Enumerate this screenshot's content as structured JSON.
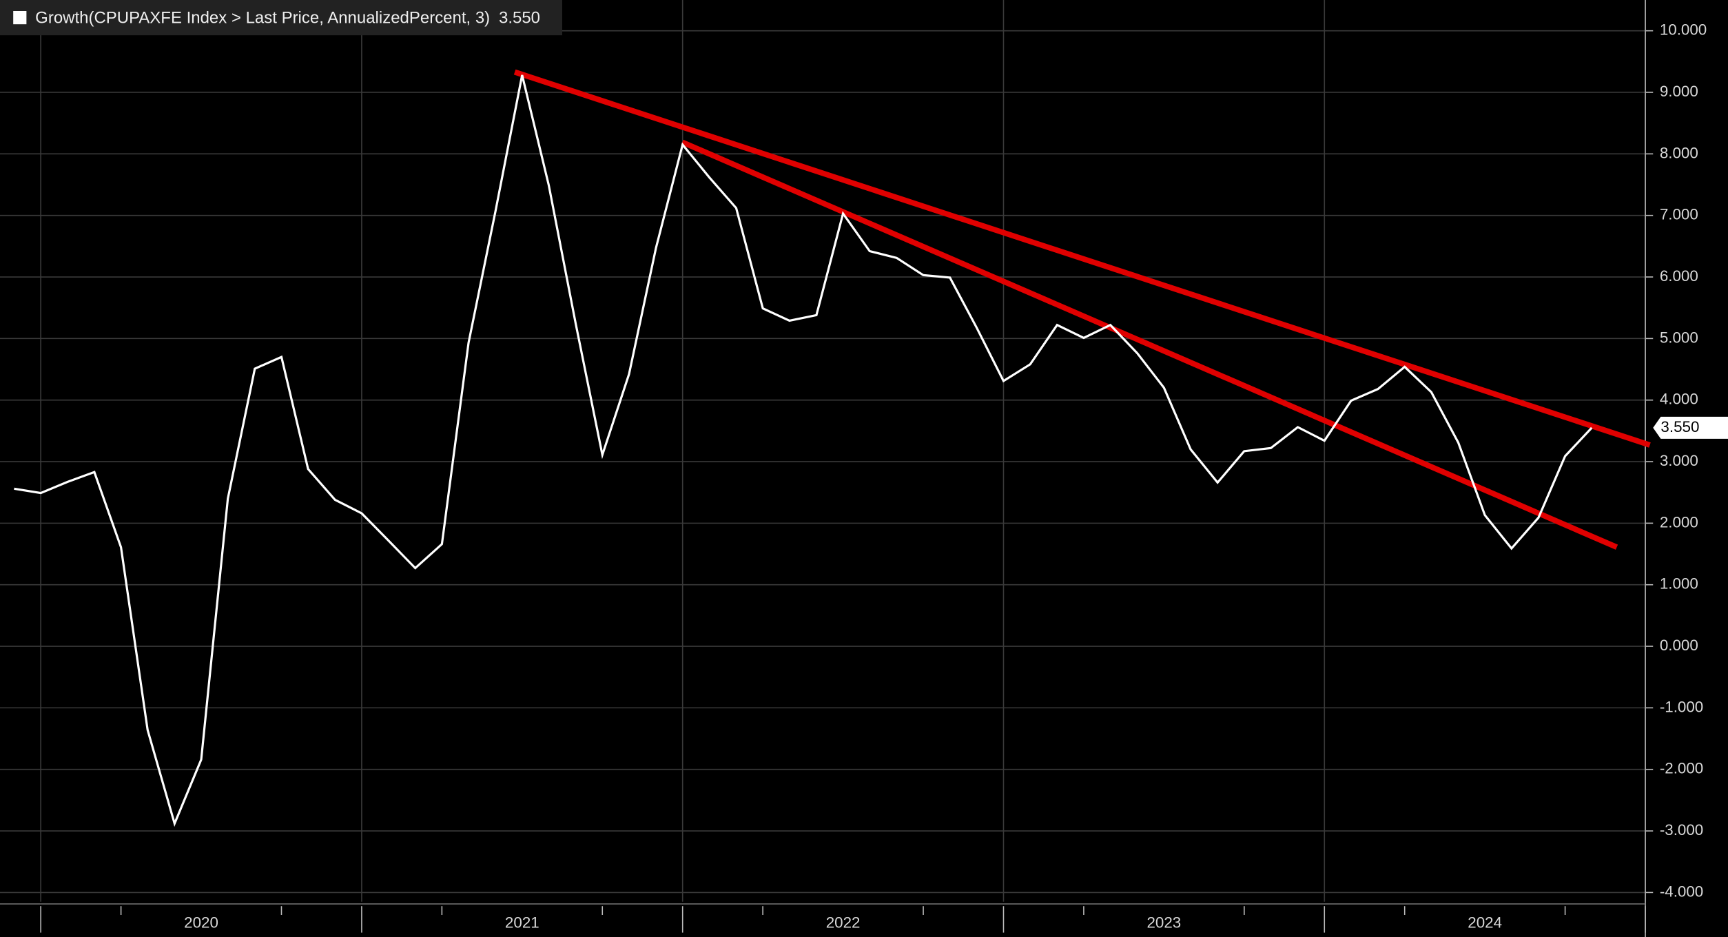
{
  "chart_data": {
    "type": "line",
    "series": [
      {
        "name": "Growth(CPUPAXFE Index > Last Price, AnnualizedPercent, 3)",
        "color": "#ffffff",
        "x": [
          2019.917,
          2020,
          2020.083,
          2020.167,
          2020.25,
          2020.333,
          2020.417,
          2020.5,
          2020.583,
          2020.667,
          2020.75,
          2020.833,
          2020.917,
          2021,
          2021.083,
          2021.167,
          2021.25,
          2021.333,
          2021.417,
          2021.5,
          2021.583,
          2021.667,
          2021.75,
          2021.833,
          2021.917,
          2022,
          2022.083,
          2022.167,
          2022.25,
          2022.333,
          2022.417,
          2022.5,
          2022.583,
          2022.667,
          2022.75,
          2022.833,
          2022.917,
          2023,
          2023.083,
          2023.167,
          2023.25,
          2023.333,
          2023.417,
          2023.5,
          2023.583,
          2023.667,
          2023.75,
          2023.833,
          2023.917,
          2024,
          2024.083,
          2024.167,
          2024.25,
          2024.333,
          2024.417,
          2024.5,
          2024.583,
          2024.667,
          2024.75,
          2024.833
        ],
        "values": [
          2.56,
          2.49,
          2.67,
          2.83,
          1.61,
          -1.36,
          -2.88,
          -1.84,
          2.4,
          4.51,
          4.7,
          2.88,
          2.38,
          2.16,
          1.72,
          1.27,
          1.66,
          4.93,
          7.07,
          9.28,
          7.49,
          5.24,
          3.11,
          4.42,
          6.47,
          8.15,
          7.62,
          7.12,
          5.49,
          5.29,
          5.38,
          7.03,
          6.42,
          6.31,
          6.03,
          5.99,
          5.17,
          4.31,
          4.58,
          5.22,
          5.01,
          5.22,
          4.76,
          4.2,
          3.2,
          2.66,
          3.17,
          3.22,
          3.56,
          3.34,
          3.99,
          4.18,
          4.54,
          4.13,
          3.31,
          2.13,
          1.59,
          2.09,
          3.09,
          3.55
        ],
        "last_value": {
          "value": 3.55,
          "label": "3.550"
        }
      }
    ],
    "trendlines": [
      {
        "color": "#e00000",
        "x": [
          2021.477,
          2025.014
        ],
        "values": [
          9.33,
          3.27
        ]
      },
      {
        "color": "#e00000",
        "x": [
          2021.999,
          2024.911
        ],
        "values": [
          8.19,
          1.61
        ]
      }
    ],
    "xlim": [
      2019.873,
      2025.0
    ],
    "xticks": [
      {
        "value": 2020.5,
        "label": "2020"
      },
      {
        "value": 2021.5,
        "label": "2021"
      },
      {
        "value": 2022.5,
        "label": "2022"
      },
      {
        "value": 2023.5,
        "label": "2023"
      },
      {
        "value": 2024.5,
        "label": "2024"
      }
    ],
    "xgrid": [
      2020,
      2021,
      2022,
      2023,
      2024,
      2025
    ],
    "ylim": [
      -4.15,
      10.5
    ],
    "yticks": [
      {
        "value": 10,
        "label": "10.000"
      },
      {
        "value": 9,
        "label": "9.000"
      },
      {
        "value": 8,
        "label": "8.000"
      },
      {
        "value": 7,
        "label": "7.000"
      },
      {
        "value": 6,
        "label": "6.000"
      },
      {
        "value": 5,
        "label": "5.000"
      },
      {
        "value": 4,
        "label": "4.000"
      },
      {
        "value": 3,
        "label": "3.000"
      },
      {
        "value": 2,
        "label": "2.000"
      },
      {
        "value": 1,
        "label": "1.000"
      },
      {
        "value": 0,
        "label": "0.000"
      },
      {
        "value": -1,
        "label": "-1.000"
      },
      {
        "value": -2,
        "label": "-2.000"
      },
      {
        "value": -3,
        "label": "-3.000"
      },
      {
        "value": -4,
        "label": "-4.000"
      }
    ],
    "grid": true
  }
}
